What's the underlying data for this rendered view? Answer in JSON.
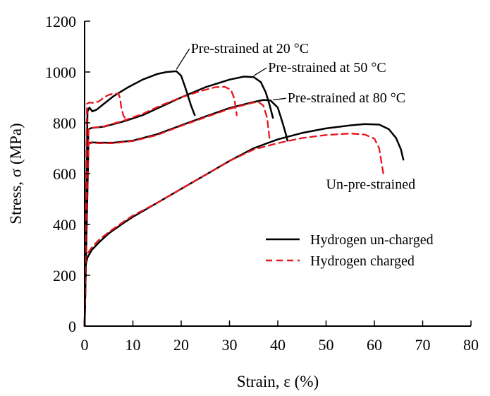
{
  "chart_data": {
    "type": "line",
    "xlabel": "Strain, ε (%)",
    "ylabel": "Stress, σ (MPa)",
    "xlim": [
      0,
      80
    ],
    "ylim": [
      0,
      1200
    ],
    "x_ticks": [
      "0",
      "10",
      "20",
      "30",
      "40",
      "50",
      "60",
      "70",
      "80"
    ],
    "y_ticks": [
      "0",
      "200",
      "400",
      "600",
      "800",
      "1000",
      "1200"
    ],
    "grid": false,
    "legend_position": "right",
    "legend": [
      {
        "label": "Hydrogen un-charged",
        "color": "#000000",
        "style": "solid"
      },
      {
        "label": "Hydrogen charged",
        "color": "#e8141c",
        "style": "dashed"
      }
    ],
    "annotations": [
      {
        "text": "Pre-strained at 20 °C",
        "x": 22,
        "y": 1075,
        "pointer": [
          19,
          1010
        ]
      },
      {
        "text": "Pre-strained at 50 °C",
        "x": 38,
        "y": 1000,
        "pointer": [
          35,
          985
        ]
      },
      {
        "text": "Pre-strained at 80 °C",
        "x": 42,
        "y": 880,
        "pointer": [
          39,
          890
        ]
      },
      {
        "text": "Un-pre-strained",
        "x": 50,
        "y": 540,
        "pointer": null
      }
    ],
    "series": [
      {
        "group": "Un-pre-strained",
        "condition": "Hydrogen un-charged",
        "style": "solid",
        "color": "#000000",
        "x": [
          0,
          0.2,
          0.6,
          1.5,
          3,
          5,
          8,
          10,
          15,
          20,
          25,
          30,
          35,
          40,
          45,
          50,
          55,
          58,
          61,
          63,
          64.5,
          65.5,
          66
        ],
        "y": [
          0,
          240,
          270,
          300,
          330,
          365,
          405,
          430,
          485,
          540,
          595,
          650,
          700,
          735,
          760,
          778,
          790,
          795,
          793,
          775,
          740,
          695,
          655
        ]
      },
      {
        "group": "Un-pre-strained",
        "condition": "Hydrogen charged",
        "style": "dashed",
        "color": "#e8141c",
        "x": [
          0,
          0.2,
          0.6,
          1.5,
          3,
          5,
          8,
          10,
          15,
          20,
          25,
          30,
          35,
          40,
          45,
          50,
          55,
          58,
          60,
          61,
          61.5,
          62
        ],
        "y": [
          0,
          260,
          285,
          310,
          340,
          370,
          410,
          435,
          485,
          540,
          595,
          650,
          695,
          720,
          740,
          752,
          758,
          754,
          738,
          700,
          640,
          585
        ]
      },
      {
        "group": "Pre-strained at 80 °C",
        "condition": "Hydrogen un-charged",
        "style": "solid",
        "color": "#000000",
        "x": [
          0,
          0.8,
          1.5,
          3,
          6,
          10,
          15,
          20,
          25,
          30,
          35,
          37,
          38.5,
          40,
          41,
          41.6,
          42
        ],
        "y": [
          0,
          720,
          723,
          722,
          722,
          730,
          755,
          790,
          825,
          858,
          882,
          890,
          888,
          860,
          800,
          760,
          730
        ]
      },
      {
        "group": "Pre-strained at 80 °C",
        "condition": "Hydrogen charged",
        "style": "dashed",
        "color": "#e8141c",
        "x": [
          0,
          0.8,
          1.5,
          3,
          6,
          10,
          15,
          20,
          25,
          30,
          33,
          35,
          36,
          37,
          37.8,
          38.3
        ],
        "y": [
          0,
          718,
          721,
          720,
          720,
          728,
          752,
          788,
          822,
          855,
          870,
          880,
          882,
          868,
          820,
          735
        ]
      },
      {
        "group": "Pre-strained at 50 °C",
        "condition": "Hydrogen un-charged",
        "style": "solid",
        "color": "#000000",
        "x": [
          0,
          0.8,
          1.5,
          4,
          8,
          12,
          16,
          20,
          25,
          30,
          33,
          35,
          36.5,
          37.5,
          38.3,
          39
        ],
        "y": [
          0,
          775,
          780,
          785,
          805,
          830,
          865,
          900,
          940,
          970,
          982,
          980,
          960,
          920,
          870,
          820
        ]
      },
      {
        "group": "Pre-strained at 50 °C",
        "condition": "Hydrogen charged",
        "style": "dashed",
        "color": "#e8141c",
        "x": [
          0,
          0.8,
          1.5,
          4,
          8,
          12,
          16,
          20,
          24,
          27,
          29,
          30.3,
          31,
          31.5
        ],
        "y": [
          0,
          775,
          780,
          786,
          808,
          835,
          870,
          900,
          925,
          940,
          942,
          930,
          895,
          830
        ]
      },
      {
        "group": "Pre-strained at 20 °C",
        "condition": "Hydrogen un-charged",
        "style": "solid",
        "color": "#000000",
        "x": [
          0,
          0.6,
          1,
          1.6,
          2.5,
          4,
          6,
          9,
          12,
          15,
          17,
          19,
          20,
          21,
          22,
          22.8
        ],
        "y": [
          0,
          845,
          860,
          845,
          852,
          875,
          905,
          940,
          970,
          992,
          1000,
          1003,
          985,
          930,
          870,
          830
        ]
      },
      {
        "group": "Pre-strained at 20 °C",
        "condition": "Hydrogen charged",
        "style": "dashed",
        "color": "#e8141c",
        "x": [
          0,
          0.5,
          1,
          2,
          3,
          4,
          5,
          6,
          7,
          7.3,
          7.6,
          8,
          8.5
        ],
        "y": [
          0,
          875,
          880,
          878,
          885,
          900,
          910,
          915,
          915,
          900,
          860,
          830,
          815
        ]
      }
    ]
  }
}
